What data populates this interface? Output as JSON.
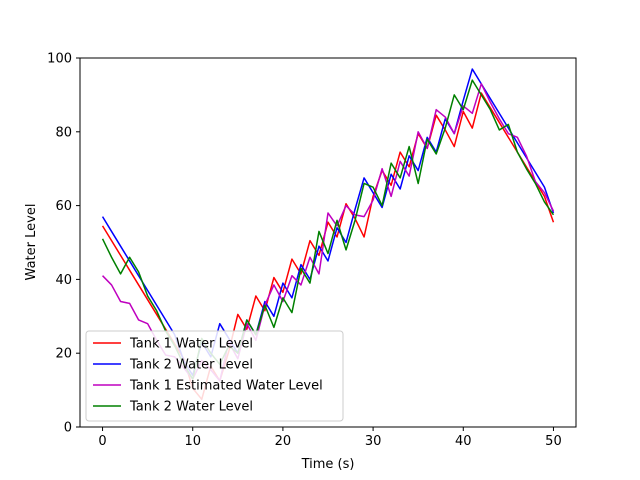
{
  "chart_data": {
    "type": "line",
    "title": "",
    "xlabel": "Time (s)",
    "ylabel": "Water Level",
    "xlim": [
      -2.5,
      52.5
    ],
    "ylim": [
      0,
      100
    ],
    "xticks": [
      0,
      10,
      20,
      30,
      40,
      50
    ],
    "yticks": [
      0,
      20,
      40,
      60,
      80,
      100
    ],
    "grid": false,
    "legend_position": "lower-left",
    "series": [
      {
        "name": "Tank 1 Water Level",
        "color": "#ff0000",
        "x": [
          0,
          1,
          2,
          3,
          4,
          5,
          6,
          7,
          8,
          9,
          10,
          11,
          12,
          13,
          14,
          15,
          16,
          17,
          18,
          19,
          20,
          21,
          22,
          23,
          24,
          25,
          26,
          27,
          28,
          29,
          30,
          31,
          32,
          33,
          34,
          35,
          36,
          37,
          38,
          39,
          40,
          41,
          42,
          43,
          44,
          45,
          46,
          47,
          48,
          49,
          50
        ],
        "y": [
          54.5,
          50.5,
          46.5,
          42.5,
          38.5,
          34.5,
          30.5,
          26.5,
          22.5,
          18.5,
          10.5,
          7.5,
          16.5,
          12.5,
          20.5,
          30.5,
          26.5,
          35.5,
          31.5,
          40.5,
          36.5,
          45.5,
          41.5,
          50.5,
          46.5,
          55.5,
          51.5,
          60.5,
          56.5,
          51.5,
          62.5,
          69.5,
          65.5,
          74.5,
          70.5,
          79.5,
          75.5,
          84.5,
          80.5,
          76.0,
          85.5,
          81.0,
          90.5,
          86.5,
          82.5,
          78.5,
          74.5,
          70.5,
          66.5,
          62.5,
          55.5
        ]
      },
      {
        "name": "Tank 2 Water Level",
        "color": "#0000ff",
        "x": [
          0,
          1,
          2,
          3,
          4,
          5,
          6,
          7,
          8,
          9,
          10,
          11,
          12,
          13,
          14,
          15,
          16,
          17,
          18,
          19,
          20,
          21,
          22,
          23,
          24,
          25,
          26,
          27,
          28,
          29,
          30,
          31,
          32,
          33,
          34,
          35,
          36,
          37,
          38,
          39,
          40,
          41,
          42,
          43,
          44,
          45,
          46,
          47,
          48,
          49,
          50
        ],
        "y": [
          57.0,
          53.0,
          49.0,
          45.0,
          41.0,
          37.0,
          33.0,
          29.0,
          25.0,
          18.0,
          14.0,
          23.0,
          19.0,
          28.0,
          24.0,
          20.0,
          29.0,
          25.0,
          34.0,
          30.0,
          39.0,
          35.0,
          44.0,
          40.0,
          49.0,
          45.0,
          54.0,
          50.0,
          59.0,
          67.5,
          63.5,
          59.5,
          68.5,
          64.5,
          73.5,
          69.5,
          78.5,
          74.5,
          83.5,
          79.5,
          88.5,
          97.0,
          93.0,
          89.0,
          85.0,
          81.0,
          77.0,
          73.0,
          69.0,
          65.0,
          58.0
        ]
      },
      {
        "name": "Tank 1 Estimated Water Level",
        "color": "#bf00bf",
        "x": [
          0,
          1,
          2,
          3,
          4,
          5,
          6,
          7,
          8,
          9,
          10,
          11,
          12,
          13,
          14,
          15,
          16,
          17,
          18,
          19,
          20,
          21,
          22,
          23,
          24,
          25,
          26,
          27,
          28,
          29,
          30,
          31,
          32,
          33,
          34,
          35,
          36,
          37,
          38,
          39,
          40,
          41,
          42,
          43,
          44,
          45,
          46,
          47,
          48,
          49,
          50
        ],
        "y": [
          41.0,
          38.5,
          34.0,
          33.5,
          29.0,
          28.0,
          23.5,
          19.5,
          19.0,
          16.0,
          13.0,
          18.0,
          15.5,
          12.5,
          23.0,
          18.5,
          28.0,
          23.5,
          33.0,
          38.5,
          34.0,
          41.0,
          38.5,
          46.0,
          41.5,
          58.0,
          54.5,
          60.0,
          57.5,
          57.0,
          61.5,
          70.0,
          62.5,
          72.0,
          68.0,
          80.0,
          75.5,
          86.0,
          84.0,
          79.5,
          87.0,
          85.0,
          93.0,
          88.0,
          83.5,
          79.5,
          78.5,
          73.5,
          66.5,
          63.5,
          58.5
        ]
      },
      {
        "name": "Tank 2 Water Level",
        "color": "#008000",
        "x": [
          0,
          1,
          2,
          3,
          4,
          5,
          6,
          7,
          8,
          9,
          10,
          11,
          12,
          13,
          14,
          15,
          16,
          17,
          18,
          19,
          20,
          21,
          22,
          23,
          24,
          25,
          26,
          27,
          28,
          29,
          30,
          31,
          32,
          33,
          34,
          35,
          36,
          37,
          38,
          39,
          40,
          41,
          42,
          43,
          44,
          45,
          46,
          47,
          48,
          49,
          50
        ],
        "y": [
          51.0,
          46.0,
          41.5,
          46.0,
          42.0,
          35.5,
          31.5,
          26.0,
          22.0,
          17.0,
          13.0,
          24.0,
          20.0,
          17.0,
          22.0,
          20.0,
          29.0,
          25.0,
          33.0,
          27.0,
          35.0,
          31.0,
          43.0,
          39.0,
          53.0,
          47.0,
          56.0,
          48.0,
          56.0,
          66.0,
          65.0,
          60.0,
          71.5,
          67.5,
          76.0,
          66.0,
          78.0,
          74.0,
          81.0,
          90.0,
          86.0,
          94.0,
          90.0,
          86.0,
          80.5,
          82.0,
          74.5,
          70.0,
          66.0,
          61.0,
          57.5
        ]
      }
    ]
  }
}
